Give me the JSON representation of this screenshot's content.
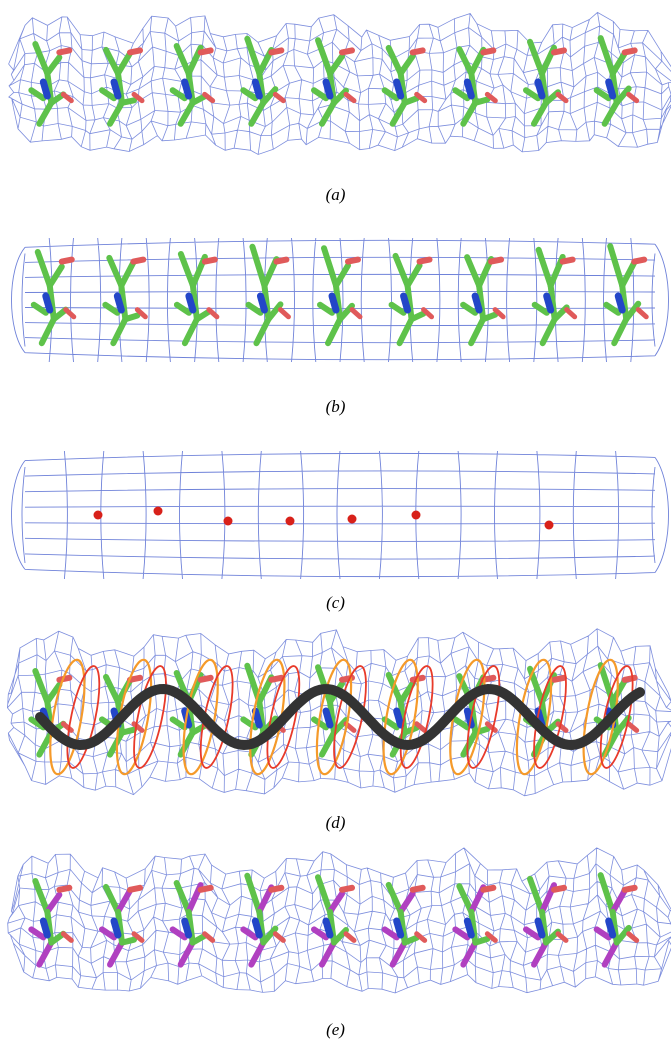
{
  "figure": {
    "panels": [
      {
        "id": "a",
        "label": "(a)",
        "content": "map-with-model"
      },
      {
        "id": "b",
        "label": "(b)",
        "content": "smooth-envelope-with-model"
      },
      {
        "id": "c",
        "label": "(c)",
        "content": "smooth-envelope-with-ca-points"
      },
      {
        "id": "d",
        "label": "(d)",
        "content": "map-with-model-and-helix-trace"
      },
      {
        "id": "e",
        "label": "(e)",
        "content": "map-with-two-models"
      }
    ],
    "colors": {
      "mesh": "#6f82d9",
      "carbon": "#5ec24a",
      "nitrogen": "#2346c8",
      "oxygen": "#e05a5a",
      "alt_model": "#b040c0",
      "ca_point": "#d8211a",
      "ribbon": "#333333",
      "helix_trace_red": "#e83a2a",
      "helix_trace_orange": "#f59a2a"
    },
    "ca_points": 7
  }
}
